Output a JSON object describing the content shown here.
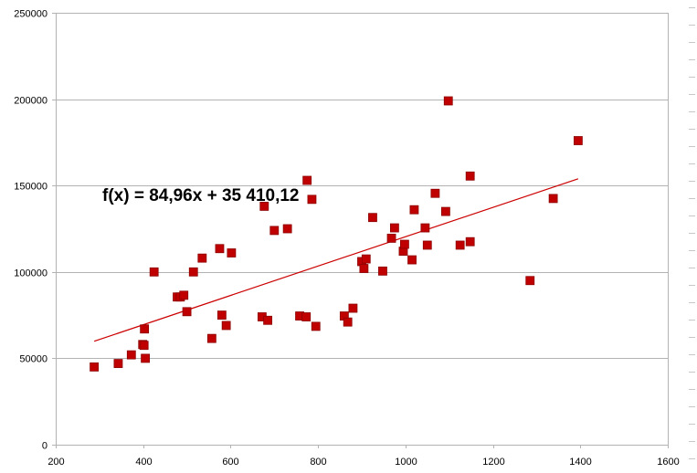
{
  "chart_data": {
    "type": "scatter",
    "xlim": [
      200,
      1600
    ],
    "ylim": [
      0,
      250000
    ],
    "x_ticks": [
      "200",
      "400",
      "600",
      "800",
      "1000",
      "1200",
      "1400",
      "1600"
    ],
    "y_ticks": [
      "0",
      "50000",
      "100000",
      "150000",
      "200000",
      "250000"
    ],
    "grid": "horizontal",
    "points": [
      {
        "x": 288,
        "y": 45000
      },
      {
        "x": 343,
        "y": 47000
      },
      {
        "x": 373,
        "y": 52000
      },
      {
        "x": 399,
        "y": 58000
      },
      {
        "x": 402,
        "y": 57500
      },
      {
        "x": 403,
        "y": 67000
      },
      {
        "x": 405,
        "y": 50000
      },
      {
        "x": 425,
        "y": 100000
      },
      {
        "x": 478,
        "y": 85500
      },
      {
        "x": 485,
        "y": 85500
      },
      {
        "x": 493,
        "y": 86500
      },
      {
        "x": 500,
        "y": 77000
      },
      {
        "x": 515,
        "y": 100000
      },
      {
        "x": 535,
        "y": 108000
      },
      {
        "x": 557,
        "y": 61500
      },
      {
        "x": 575,
        "y": 113500
      },
      {
        "x": 580,
        "y": 75000
      },
      {
        "x": 590,
        "y": 69000
      },
      {
        "x": 602,
        "y": 111000
      },
      {
        "x": 672,
        "y": 74000
      },
      {
        "x": 677,
        "y": 138000
      },
      {
        "x": 685,
        "y": 72000
      },
      {
        "x": 700,
        "y": 124000
      },
      {
        "x": 730,
        "y": 125000
      },
      {
        "x": 758,
        "y": 74500
      },
      {
        "x": 773,
        "y": 74000
      },
      {
        "x": 775,
        "y": 153000
      },
      {
        "x": 786,
        "y": 142000
      },
      {
        "x": 795,
        "y": 68500
      },
      {
        "x": 860,
        "y": 74500
      },
      {
        "x": 868,
        "y": 71000
      },
      {
        "x": 880,
        "y": 79000
      },
      {
        "x": 900,
        "y": 106000
      },
      {
        "x": 905,
        "y": 102000
      },
      {
        "x": 910,
        "y": 107500
      },
      {
        "x": 925,
        "y": 131500
      },
      {
        "x": 948,
        "y": 100500
      },
      {
        "x": 968,
        "y": 119500
      },
      {
        "x": 975,
        "y": 125500
      },
      {
        "x": 995,
        "y": 112000
      },
      {
        "x": 998,
        "y": 116000
      },
      {
        "x": 1015,
        "y": 107000
      },
      {
        "x": 1020,
        "y": 136000
      },
      {
        "x": 1045,
        "y": 125500
      },
      {
        "x": 1050,
        "y": 115500
      },
      {
        "x": 1068,
        "y": 145500
      },
      {
        "x": 1092,
        "y": 135000
      },
      {
        "x": 1098,
        "y": 199000
      },
      {
        "x": 1125,
        "y": 115500
      },
      {
        "x": 1148,
        "y": 155500
      },
      {
        "x": 1148,
        "y": 117500
      },
      {
        "x": 1285,
        "y": 95000
      },
      {
        "x": 1338,
        "y": 142500
      },
      {
        "x": 1395,
        "y": 176000
      }
    ],
    "trendline": {
      "slope": 84.96,
      "intercept": 35410.12,
      "x_range": [
        288,
        1395
      ],
      "color": "#cc0000"
    },
    "equation": "f(x) = 84,96x + 35 410,12",
    "marker_color": "#c00000",
    "grid_color": "#b3b3b3"
  }
}
